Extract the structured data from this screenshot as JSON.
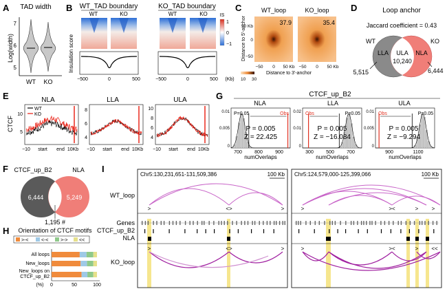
{
  "panel_letters": [
    "A",
    "B",
    "C",
    "D",
    "E",
    "F",
    "G",
    "H",
    "I"
  ],
  "colors": {
    "wt_gray": "#808080",
    "ko_red": "#ef7b74",
    "ko_line_red": "#e8180c",
    "loop_arc": "#c864c8",
    "highlight": "#f5e27a",
    "heat_blue": "#2d6fd6",
    "heat_red": "#e8a090",
    "apa_orange": "#f0a050",
    "apa_dark": "#5a2a0a",
    "obs_red": "#e03020"
  },
  "panelA": {
    "title": "TAD width",
    "ylabel": "Log(width)",
    "yticks": [
      "7",
      "6",
      "5"
    ],
    "groups": [
      "WT",
      "KO"
    ]
  },
  "panelB": {
    "wt_title": "WT_TAD boundary",
    "ko_title": "KO_TAD boundary",
    "col_labels": [
      "WT",
      "KO",
      "WT",
      "KO"
    ],
    "ylabel": "Insulation score",
    "xticks": [
      "−500",
      "0",
      "500",
      "−500",
      "0",
      "500"
    ],
    "xunit": "(Kb)",
    "legend_title": "IS",
    "legend_ticks": [
      "1",
      "0",
      "−1"
    ]
  },
  "panelC": {
    "titles": [
      "WT_loop",
      "KO_loop"
    ],
    "scores": [
      "37.9",
      "35.4"
    ],
    "ylabel": "Distance to 5'-anchor",
    "xlabel": "Distance to 3'-anchor",
    "yticks": [
      "50 Kb",
      "0",
      "−50"
    ],
    "xticks": [
      "−50",
      "0",
      "50 Kb",
      "−50",
      "0",
      "50 Kb"
    ],
    "color_ticks": [
      "10",
      "30"
    ]
  },
  "panelD": {
    "title": "Loop anchor",
    "subtitle": "Jaccard coefficient = 0.43",
    "labels": [
      "WT",
      "KO",
      "LLA",
      "ULA",
      "NLA"
    ],
    "counts": [
      "5,515",
      "10,240",
      "6,444"
    ]
  },
  "panelE": {
    "titles": [
      "NLA",
      "LLA",
      "ULA"
    ],
    "ylabel": "CTCF",
    "legend": [
      "WT",
      "KO"
    ],
    "yticks_nla": [
      "10",
      "5"
    ],
    "yticks_lla": [
      "8",
      "6",
      "4"
    ],
    "yticks_ula": [
      "10",
      "8",
      "6",
      "4"
    ],
    "xticks": [
      "−10",
      "start",
      "end",
      "10Kb"
    ]
  },
  "panelF": {
    "labels": [
      "CTCF_up_B2",
      "NLA"
    ],
    "counts": [
      "6,444",
      "5,249",
      "1,195 #"
    ]
  },
  "panelG": {
    "title": "CTCF_up_B2",
    "subtitles": [
      "NLA",
      "LLA",
      "ULA"
    ],
    "p_label": "P=0.05",
    "obs_label": "Obs",
    "pvals": [
      "P = 0.005",
      "P = 0.005",
      "P = 0.005"
    ],
    "zvals": [
      "Z = 22.425",
      "Z = −16.084",
      "Z = −9.294"
    ],
    "yticks_1": [
      "0.01",
      "0.005",
      "0"
    ],
    "yticks_2": [
      "0.02",
      "0.01",
      "0"
    ],
    "yticks_3": [
      "0.01",
      "0.005",
      "0"
    ],
    "xticks_1": [
      "700",
      "800",
      "900"
    ],
    "xticks_2": [
      "300",
      "500",
      "700"
    ],
    "xticks_3": [
      "900",
      "1100"
    ],
    "xlabel": "numOverlaps"
  },
  "panelH": {
    "title": "Orientation of CTCF motifs",
    "legend": [
      ">-<",
      "<-<",
      ">->",
      "<<"
    ],
    "rows": [
      "All loops",
      "New_loops",
      "New_loops on",
      "CTCF_up_B2"
    ],
    "xticks": [
      "0",
      "50",
      "100"
    ],
    "xunit": "(%)",
    "bars": [
      {
        "convergent": 62,
        "tandem1": 15,
        "tandem2": 15,
        "divergent": 8
      },
      {
        "convergent": 64,
        "tandem1": 14,
        "tandem2": 14,
        "divergent": 8
      },
      {
        "convergent": 66,
        "tandem1": 13,
        "tandem2": 13,
        "divergent": 8
      }
    ]
  },
  "panelI": {
    "left_coords": "Chr5:130,231,651-131,509,386",
    "right_coords": "Chr5:124,579,000-125,399,066",
    "scale_label": "100 Kb",
    "tracks": [
      "WT_loop",
      "Genes",
      "CTCF_up_B2",
      "NLA",
      "KO_loop"
    ],
    "orient_left_wt": [
      ">",
      "<>",
      ">"
    ],
    "orient_right_wt": [
      ">",
      "><",
      ">",
      ">"
    ],
    "orient_left_ko": [
      ">",
      "<>",
      ">"
    ],
    "orient_right_ko": [
      ">",
      "><",
      ">",
      "<<"
    ]
  }
}
